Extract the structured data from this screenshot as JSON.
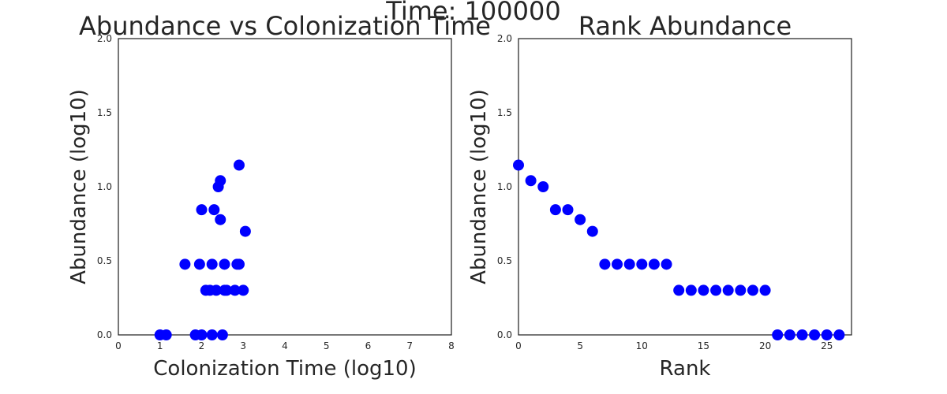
{
  "figure": {
    "suptitle": "Time: 100000"
  },
  "chart_data": [
    {
      "type": "scatter",
      "title": "Abundance vs Colonization Time",
      "xlabel": "Colonization Time (log10)",
      "ylabel": "Abundance (log10)",
      "xlim": [
        0,
        8
      ],
      "ylim": [
        0,
        2
      ],
      "xticks": [
        0,
        1,
        2,
        3,
        4,
        5,
        6,
        7,
        8
      ],
      "yticks": [
        0.0,
        0.5,
        1.0,
        1.5,
        2.0
      ],
      "xtick_labels": [
        "0",
        "1",
        "2",
        "3",
        "4",
        "5",
        "6",
        "7",
        "8"
      ],
      "ytick_labels": [
        "0.0",
        "0.5",
        "1.0",
        "1.5",
        "2.0"
      ],
      "grid": false,
      "color": "#0000ff",
      "x": [
        1.0,
        1.15,
        1.85,
        2.0,
        2.25,
        2.5,
        1.6,
        1.95,
        2.25,
        2.55,
        2.85,
        2.9,
        2.1,
        2.2,
        2.35,
        2.55,
        2.6,
        2.8,
        3.0,
        2.0,
        2.3,
        2.45,
        2.4,
        2.45,
        3.05,
        2.9
      ],
      "y": [
        0.0,
        0.0,
        0.0,
        0.0,
        0.0,
        0.0,
        0.477,
        0.477,
        0.477,
        0.477,
        0.477,
        0.477,
        0.301,
        0.301,
        0.301,
        0.301,
        0.301,
        0.301,
        0.301,
        0.845,
        0.845,
        0.778,
        1.0,
        1.041,
        0.699,
        1.146
      ]
    },
    {
      "type": "scatter",
      "title": "Rank Abundance",
      "xlabel": "Rank",
      "ylabel": "Abundance (log10)",
      "xlim": [
        0,
        27
      ],
      "ylim": [
        0,
        2
      ],
      "xticks": [
        0,
        5,
        10,
        15,
        20,
        25
      ],
      "yticks": [
        0.0,
        0.5,
        1.0,
        1.5,
        2.0
      ],
      "xtick_labels": [
        "0",
        "5",
        "10",
        "15",
        "20",
        "25"
      ],
      "ytick_labels": [
        "0.0",
        "0.5",
        "1.0",
        "1.5",
        "2.0"
      ],
      "grid": false,
      "color": "#0000ff",
      "x": [
        0,
        1,
        2,
        3,
        4,
        5,
        6,
        7,
        8,
        9,
        10,
        11,
        12,
        13,
        14,
        15,
        16,
        17,
        18,
        19,
        20,
        21,
        22,
        23,
        24,
        25,
        26
      ],
      "y": [
        1.146,
        1.041,
        1.0,
        0.845,
        0.845,
        0.778,
        0.699,
        0.477,
        0.477,
        0.477,
        0.477,
        0.477,
        0.477,
        0.301,
        0.301,
        0.301,
        0.301,
        0.301,
        0.301,
        0.301,
        0.301,
        0.0,
        0.0,
        0.0,
        0.0,
        0.0,
        0.0
      ]
    }
  ]
}
